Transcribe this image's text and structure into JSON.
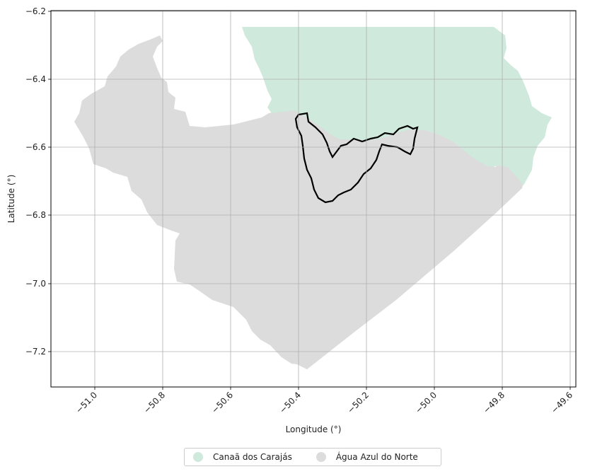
{
  "map": {
    "xlabel": "Longitude (°)",
    "ylabel": "Latitude (°)",
    "x_ticks": [
      "−51.0",
      "−50.8",
      "−50.6",
      "−50.4",
      "−50.2",
      "−50.0",
      "−49.8",
      "−49.6"
    ],
    "y_ticks": [
      "−6.2",
      "−6.4",
      "−6.6",
      "−6.8",
      "−7.0",
      "−7.2"
    ],
    "regions": [
      {
        "name": "Canaã dos Carajás",
        "color": "#cfeadc"
      },
      {
        "name": "Água Azul do Norte",
        "color": "#dcdcdc"
      }
    ],
    "outline_color": "#000000"
  },
  "legend": {
    "items": [
      {
        "label": "Canaã dos Carajás",
        "color": "#cfeadc"
      },
      {
        "label": "Água Azul do Norte",
        "color": "#dcdcdc"
      }
    ]
  }
}
